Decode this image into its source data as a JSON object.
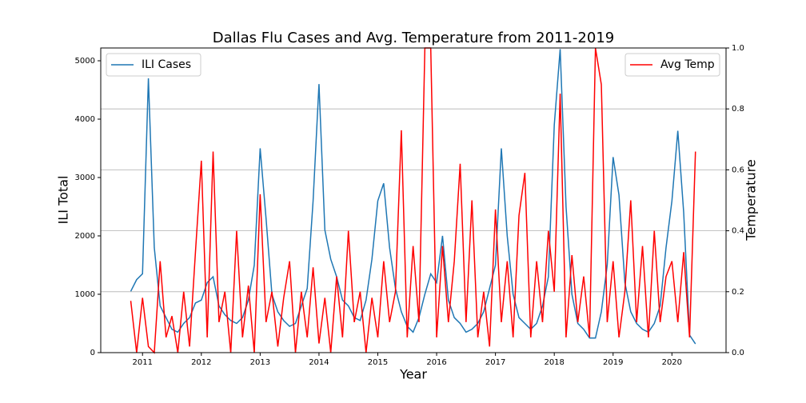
{
  "chart_data": {
    "type": "line",
    "title": "Dallas Flu Cases and Avg. Temperature from 2011-2019",
    "x_label": "Year",
    "y_label": "ILI Total",
    "y2_label": "Temperature",
    "x": [
      2010.8,
      2010.9,
      2011.0,
      2011.1,
      2011.2,
      2011.3,
      2011.4,
      2011.5,
      2011.6,
      2011.7,
      2011.8,
      2011.9,
      2012.0,
      2012.1,
      2012.2,
      2012.3,
      2012.4,
      2012.5,
      2012.6,
      2012.7,
      2012.8,
      2012.9,
      2013.0,
      2013.1,
      2013.2,
      2013.3,
      2013.4,
      2013.5,
      2013.6,
      2013.7,
      2013.8,
      2013.9,
      2014.0,
      2014.1,
      2014.2,
      2014.3,
      2014.4,
      2014.5,
      2014.6,
      2014.7,
      2014.8,
      2014.9,
      2015.0,
      2015.1,
      2015.2,
      2015.3,
      2015.4,
      2015.5,
      2015.6,
      2015.7,
      2015.8,
      2015.9,
      2016.0,
      2016.1,
      2016.2,
      2016.3,
      2016.4,
      2016.5,
      2016.6,
      2016.7,
      2016.8,
      2016.9,
      2017.0,
      2017.1,
      2017.2,
      2017.3,
      2017.4,
      2017.5,
      2017.6,
      2017.7,
      2017.8,
      2017.9,
      2018.0,
      2018.1,
      2018.2,
      2018.3,
      2018.4,
      2018.5,
      2018.6,
      2018.7,
      2018.8,
      2018.9,
      2019.0,
      2019.1,
      2019.2,
      2019.3,
      2019.4,
      2019.5,
      2019.6,
      2019.7,
      2019.8,
      2019.9,
      2020.0,
      2020.1,
      2020.2,
      2020.3,
      2020.4
    ],
    "series": [
      {
        "name": "ILI Cases",
        "color": "#1f77b4",
        "axis": "y",
        "legend": "upper left",
        "values": [
          1050,
          1250,
          1350,
          4700,
          1800,
          800,
          600,
          400,
          350,
          500,
          600,
          850,
          900,
          1200,
          1300,
          800,
          650,
          550,
          500,
          600,
          900,
          1500,
          3500,
          2300,
          1000,
          700,
          550,
          450,
          500,
          800,
          1100,
          2600,
          4600,
          2100,
          1600,
          1300,
          900,
          800,
          600,
          550,
          900,
          1600,
          2600,
          2900,
          1800,
          1100,
          700,
          450,
          350,
          600,
          1000,
          1350,
          1200,
          2000,
          900,
          600,
          500,
          350,
          400,
          500,
          700,
          1100,
          1500,
          3500,
          2000,
          1000,
          600,
          500,
          400,
          500,
          800,
          1300,
          3900,
          5200,
          2500,
          1000,
          500,
          400,
          250,
          250,
          700,
          1500,
          3350,
          2700,
          1200,
          700,
          500,
          400,
          350,
          500,
          800,
          1800,
          2600,
          3800,
          2400,
          300,
          150
        ]
      },
      {
        "name": "Avg Temp",
        "color": "#ff0000",
        "axis": "y2",
        "legend": "upper right",
        "values": [
          0.17,
          0.0,
          0.18,
          0.02,
          0.0,
          0.3,
          0.05,
          0.12,
          0.0,
          0.2,
          0.02,
          0.33,
          0.63,
          0.05,
          0.66,
          0.1,
          0.2,
          0.0,
          0.4,
          0.05,
          0.22,
          0.0,
          0.52,
          0.1,
          0.2,
          0.02,
          0.18,
          0.3,
          0.0,
          0.2,
          0.05,
          0.28,
          0.03,
          0.18,
          0.0,
          0.25,
          0.05,
          0.4,
          0.1,
          0.2,
          0.0,
          0.18,
          0.05,
          0.3,
          0.1,
          0.2,
          0.73,
          0.05,
          0.35,
          0.1,
          1.0,
          1.0,
          0.05,
          0.35,
          0.1,
          0.3,
          0.62,
          0.1,
          0.5,
          0.05,
          0.2,
          0.02,
          0.47,
          0.1,
          0.3,
          0.05,
          0.45,
          0.59,
          0.05,
          0.3,
          0.1,
          0.4,
          0.2,
          0.85,
          0.05,
          0.32,
          0.1,
          0.25,
          0.05,
          1.0,
          0.88,
          0.1,
          0.3,
          0.05,
          0.2,
          0.5,
          0.1,
          0.35,
          0.05,
          0.4,
          0.1,
          0.25,
          0.3,
          0.1,
          0.33,
          0.05,
          0.66
        ]
      }
    ],
    "xlim": [
      2010.29,
      2020.92
    ],
    "xticks": [
      2011,
      2012,
      2013,
      2014,
      2015,
      2016,
      2017,
      2018,
      2019,
      2020
    ],
    "ylim": [
      0,
      5219
    ],
    "yticks": [
      0,
      1000,
      2000,
      3000,
      4000,
      5000
    ],
    "y2lim": [
      0,
      1
    ],
    "y2ticks": [
      {
        "value": 0,
        "label": "0.0"
      },
      {
        "value": 0.2,
        "label": "0.2"
      },
      {
        "value": 0.4,
        "label": "0.4"
      },
      {
        "value": 0.6,
        "label": "0.6"
      },
      {
        "value": 0.8,
        "label": "0.8"
      },
      {
        "value": 1,
        "label": "1.0"
      }
    ],
    "grid": true
  }
}
